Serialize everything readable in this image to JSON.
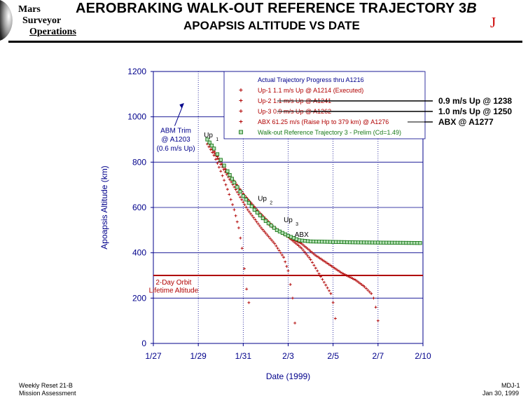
{
  "header": {
    "logo_lines": [
      "Mars",
      "Surveyor",
      "Operations"
    ],
    "title_main": "AEROBRAKING WALK-OUT REFERENCE TRAJECTORY 3",
    "title_suffix": "B",
    "subtitle": "APOAPSIS ALTITUDE VS DATE",
    "corner_mark": "J"
  },
  "footer": {
    "left_line1": "Weekly Reset 21-B",
    "left_line2": "Mission Assessment",
    "right_line1": "MDJ-1",
    "right_line2": "Jan 30, 1999"
  },
  "colors": {
    "axis": "#00008b",
    "actual": "#b00000",
    "walkout": "#1a7a1a",
    "lifetime_line": "#b00000",
    "gridline": "#00008b"
  },
  "chart_data": {
    "type": "scatter",
    "xlabel": "Date (1999)",
    "ylabel": "Apoapsis Altitude (km)",
    "x_ticks": [
      {
        "value": 0,
        "label": "1/27"
      },
      {
        "value": 2,
        "label": "1/29"
      },
      {
        "value": 4,
        "label": "1/31"
      },
      {
        "value": 6,
        "label": "2/3"
      },
      {
        "value": 8,
        "label": "2/5"
      },
      {
        "value": 10,
        "label": "2/7"
      },
      {
        "value": 12,
        "label": "2/10"
      }
    ],
    "xlim": [
      0,
      12
    ],
    "ylim": [
      0,
      1200
    ],
    "y_ticks": [
      0,
      200,
      400,
      600,
      800,
      1000,
      1200
    ],
    "legend_title": "Actual Trajectory Progress thru A1216",
    "legend_placement": "top-right",
    "series": [
      {
        "name": "Up-1  1.1 m/s Up @ A1214 (Executed)",
        "marker": "plus",
        "color": "#b00000",
        "points": [
          [
            2.4,
            880
          ],
          [
            2.7,
            830
          ],
          [
            3.0,
            760
          ],
          [
            3.3,
            680
          ],
          [
            3.6,
            590
          ],
          [
            3.8,
            510
          ],
          [
            3.95,
            420
          ],
          [
            4.05,
            330
          ],
          [
            4.15,
            240
          ],
          [
            4.25,
            180
          ]
        ]
      },
      {
        "name": "Up-2  1.1 m/s Up @ A1241",
        "marker": "plus",
        "color": "#b00000",
        "struck": true,
        "points": [
          [
            2.5,
            880
          ],
          [
            3.0,
            790
          ],
          [
            3.6,
            690
          ],
          [
            4.2,
            590
          ],
          [
            4.8,
            510
          ],
          [
            5.4,
            440
          ],
          [
            5.8,
            380
          ],
          [
            6.0,
            320
          ],
          [
            6.1,
            260
          ],
          [
            6.2,
            200
          ],
          [
            6.3,
            90
          ]
        ]
      },
      {
        "name": "Up-3  0.9 m/s Up @ A1262",
        "marker": "plus",
        "color": "#b00000",
        "struck": true,
        "points": [
          [
            2.5,
            880
          ],
          [
            3.2,
            770
          ],
          [
            4.0,
            660
          ],
          [
            4.6,
            580
          ],
          [
            5.2,
            520
          ],
          [
            6.0,
            470
          ],
          [
            6.6,
            420
          ],
          [
            7.0,
            370
          ],
          [
            7.3,
            320
          ],
          [
            7.6,
            270
          ],
          [
            7.9,
            220
          ],
          [
            8.0,
            180
          ],
          [
            8.1,
            110
          ]
        ]
      },
      {
        "name": "ABX  61.25 m/s (Raise Hp to 379 km) @ A1276",
        "marker": "plus",
        "color": "#b00000",
        "struck": true,
        "points": [
          [
            2.5,
            880
          ],
          [
            3.2,
            770
          ],
          [
            4.0,
            660
          ],
          [
            4.7,
            580
          ],
          [
            5.4,
            510
          ],
          [
            6.0,
            470
          ],
          [
            6.6,
            440
          ],
          [
            7.2,
            390
          ],
          [
            7.8,
            350
          ],
          [
            8.4,
            310
          ],
          [
            9.0,
            280
          ],
          [
            9.4,
            250
          ],
          [
            9.7,
            220
          ],
          [
            9.8,
            200
          ],
          [
            9.9,
            160
          ],
          [
            10.0,
            100
          ]
        ]
      },
      {
        "name": "Walk-out Reference Trajectory 3 - Prelim (Cd=1.49)",
        "marker": "square",
        "color": "#1a7a1a",
        "points": [
          [
            2.4,
            900
          ],
          [
            2.7,
            860
          ],
          [
            3.0,
            810
          ],
          [
            3.3,
            760
          ],
          [
            3.6,
            710
          ],
          [
            4.0,
            650
          ],
          [
            4.5,
            590
          ],
          [
            5.0,
            540
          ],
          [
            5.5,
            500
          ],
          [
            6.0,
            475
          ],
          [
            6.5,
            455
          ],
          [
            7.0,
            450
          ],
          [
            8.0,
            448
          ],
          [
            9.0,
            446
          ],
          [
            10.0,
            445
          ],
          [
            11.0,
            444
          ],
          [
            12.0,
            443
          ]
        ]
      }
    ],
    "annotations": [
      {
        "text": "ABM Trim",
        "x": 1.0,
        "y": 930
      },
      {
        "text": "@ A1203",
        "x": 1.0,
        "y": 890
      },
      {
        "text": "(0.6 m/s Up)",
        "x": 1.0,
        "y": 850
      },
      {
        "text": "2-Day Orbit",
        "x": 0.9,
        "y": 260
      },
      {
        "text": "Lifetime Altitude",
        "x": 0.9,
        "y": 225
      },
      {
        "text": "ABX",
        "x": 6.6,
        "y": 470
      }
    ],
    "up_labels": [
      {
        "main": "Up",
        "sub": "1",
        "x": 2.25,
        "y": 910
      },
      {
        "main": "Up",
        "sub": "2",
        "x": 4.65,
        "y": 630
      },
      {
        "main": "Up",
        "sub": "3",
        "x": 5.8,
        "y": 535
      }
    ],
    "lifetime_altitude": 300,
    "callouts": [
      {
        "text": "0.9 m/s Up @ 1238"
      },
      {
        "text": "1.0 m/s Up @ 1250"
      },
      {
        "text": "ABX @ A1277"
      }
    ]
  }
}
